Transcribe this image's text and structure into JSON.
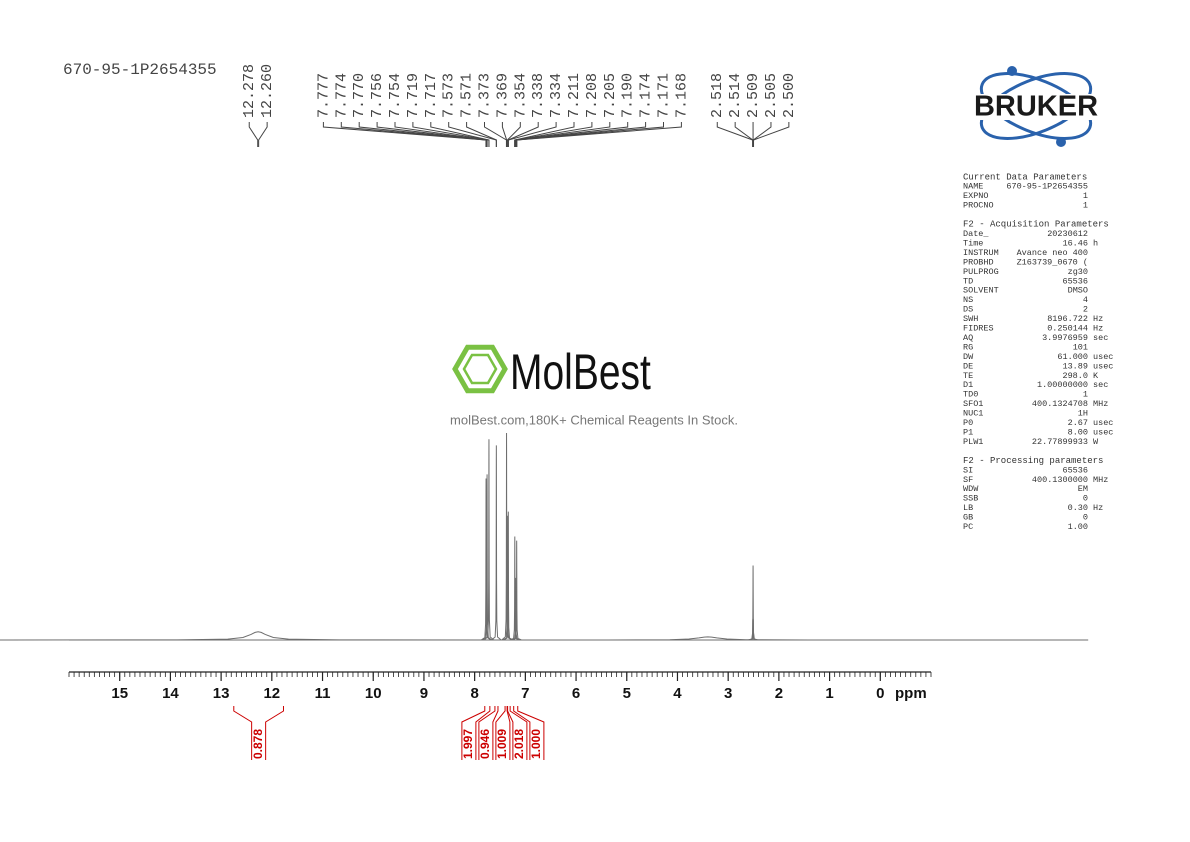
{
  "chart_data": {
    "type": "nmr",
    "title": "670-95-1P2654355",
    "x_label": "ppm",
    "xlim": [
      16,
      -1
    ],
    "xticks": [
      15,
      14,
      13,
      12,
      11,
      10,
      9,
      8,
      7,
      6,
      5,
      4,
      3,
      2,
      1,
      0
    ],
    "minor_tick_step": 0.1,
    "ylim": [
      0,
      100
    ],
    "color": "#6e6e6e",
    "x": [
      12.27,
      7.775,
      7.755,
      7.718,
      7.572,
      7.371,
      7.354,
      7.336,
      7.208,
      7.19,
      7.171,
      3.4,
      2.514,
      2.509,
      2.505
    ],
    "values": [
      4,
      78,
      80,
      97,
      94,
      100,
      60,
      62,
      50,
      30,
      48,
      1.5,
      10,
      36,
      10
    ],
    "widths": [
      0.2,
      0.003,
      0.003,
      0.003,
      0.003,
      0.003,
      0.003,
      0.003,
      0.003,
      0.003,
      0.003,
      0.25,
      0.003,
      0.003,
      0.003
    ],
    "peak_labels": [
      [
        "12.278",
        "12.260"
      ],
      [
        "7.777",
        "7.774",
        "7.770",
        "7.756",
        "7.754",
        "7.719",
        "7.717",
        "7.573",
        "7.571",
        "7.373",
        "7.369",
        "7.354",
        "7.338",
        "7.334",
        "7.211",
        "7.208",
        "7.205",
        "7.190",
        "7.174",
        "7.171",
        "7.168"
      ],
      [
        "2.518",
        "2.514",
        "2.509",
        "2.505",
        "2.500"
      ]
    ],
    "integrals": [
      [
        {
          "label": "0.878",
          "from": 12.75,
          "to": 11.77
        }
      ],
      [
        {
          "label": "1.997",
          "from": 7.8,
          "to": 7.7
        },
        {
          "label": "0.946",
          "from": 7.6,
          "to": 7.54
        },
        {
          "label": "1.009",
          "from": 7.4,
          "to": 7.36
        },
        {
          "label": "2.018",
          "from": 7.35,
          "to": 7.3
        },
        {
          "label": "1.000",
          "from": 7.23,
          "to": 7.15
        }
      ]
    ]
  },
  "watermark": {
    "brand": "MolBest",
    "tagline": "molBest.com,180K+ Chemical Reagents In Stock."
  },
  "logo": "BRUKER",
  "parameters": {
    "sections": [
      {
        "title": "Current Data Parameters",
        "rows": [
          [
            "NAME",
            "670-95-1P2654355"
          ],
          [
            "EXPNO",
            "1"
          ],
          [
            "PROCNO",
            "1"
          ]
        ]
      },
      {
        "title": "F2 - Acquisition Parameters",
        "rows": [
          [
            "Date_",
            "20230612"
          ],
          [
            "Time",
            "16.46",
            "h"
          ],
          [
            "INSTRUM",
            "Avance neo 400"
          ],
          [
            "PROBHD",
            "Z163739_0670 ("
          ],
          [
            "PULPROG",
            "zg30"
          ],
          [
            "TD",
            "65536"
          ],
          [
            "SOLVENT",
            "DMSO"
          ],
          [
            "NS",
            "4"
          ],
          [
            "DS",
            "2"
          ],
          [
            "SWH",
            "8196.722",
            "Hz"
          ],
          [
            "FIDRES",
            "0.250144",
            "Hz"
          ],
          [
            "AQ",
            "3.9976959",
            "sec"
          ],
          [
            "RG",
            "101"
          ],
          [
            "DW",
            "61.000",
            "usec"
          ],
          [
            "DE",
            "13.89",
            "usec"
          ],
          [
            "TE",
            "298.0",
            "K"
          ],
          [
            "D1",
            "1.00000000",
            "sec"
          ],
          [
            "TD0",
            "1"
          ],
          [
            "SFO1",
            "400.1324708",
            "MHz"
          ],
          [
            "NUC1",
            "1H"
          ],
          [
            "P0",
            "2.67",
            "usec"
          ],
          [
            "P1",
            "8.00",
            "usec"
          ],
          [
            "PLW1",
            "22.77899933",
            "W"
          ]
        ]
      },
      {
        "title": "F2 - Processing parameters",
        "rows": [
          [
            "SI",
            "65536"
          ],
          [
            "SF",
            "400.1300000",
            "MHz"
          ],
          [
            "WDW",
            "EM"
          ],
          [
            "SSB",
            "0"
          ],
          [
            "LB",
            "0.30",
            "Hz"
          ],
          [
            "GB",
            "0"
          ],
          [
            "PC",
            "1.00"
          ]
        ]
      }
    ]
  }
}
